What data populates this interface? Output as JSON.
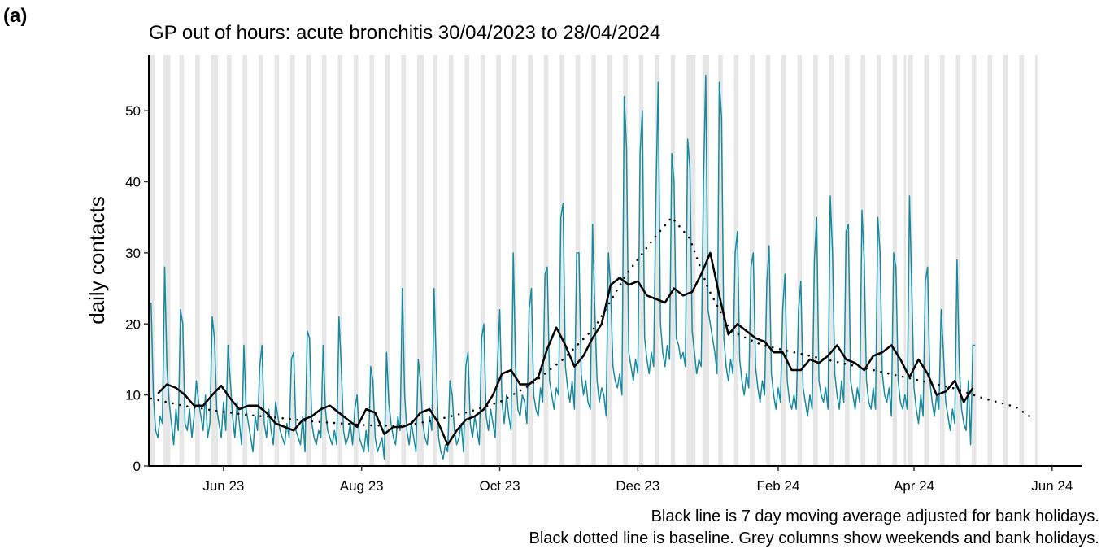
{
  "chart_data": {
    "type": "line",
    "panel_label": "(a)",
    "title": "GP out of hours: acute bronchitis 30/04/2023 to 28/04/2024",
    "ylabel": "daily contacts",
    "notes": [
      "Black line is 7 day moving average adjusted for bank holidays.",
      "Black dotted line is baseline. Grey columns show weekends and bank holidays."
    ],
    "xlim": [
      -1,
      411
    ],
    "ylim": [
      0,
      57.8
    ],
    "yticks": [
      0,
      10,
      20,
      30,
      40,
      50
    ],
    "xticks": [
      {
        "value": 32,
        "label": "Jun 23"
      },
      {
        "value": 93,
        "label": "Aug 23"
      },
      {
        "value": 154,
        "label": "Oct 23"
      },
      {
        "value": 215,
        "label": "Dec 23"
      },
      {
        "value": 277,
        "label": "Feb 24"
      },
      {
        "value": 337,
        "label": "Apr 24"
      },
      {
        "value": 398,
        "label": "Jun 24"
      }
    ],
    "shading_color": "#e6e6e6",
    "bank_holidays": [
      1,
      8,
      29,
      120,
      239,
      240,
      246,
      333,
      336
    ],
    "series": [
      {
        "style": "solid",
        "color": "#168b9f",
        "width": 1.5,
        "x": [
          0,
          1,
          2,
          3,
          4,
          5,
          6,
          7,
          8,
          9,
          10,
          11,
          12,
          13,
          14,
          15,
          16,
          17,
          18,
          19,
          20,
          21,
          22,
          23,
          24,
          25,
          26,
          27,
          28,
          29,
          30,
          31,
          32,
          33,
          34,
          35,
          36,
          37,
          38,
          39,
          40,
          41,
          42,
          43,
          44,
          45,
          46,
          47,
          48,
          49,
          50,
          51,
          52,
          53,
          54,
          55,
          56,
          57,
          58,
          59,
          60,
          61,
          62,
          63,
          64,
          65,
          66,
          67,
          68,
          69,
          70,
          71,
          72,
          73,
          74,
          75,
          76,
          77,
          78,
          79,
          80,
          81,
          82,
          83,
          84,
          85,
          86,
          87,
          88,
          89,
          90,
          91,
          92,
          93,
          94,
          95,
          96,
          97,
          98,
          99,
          100,
          101,
          102,
          103,
          104,
          105,
          106,
          107,
          108,
          109,
          110,
          111,
          112,
          113,
          114,
          115,
          116,
          117,
          118,
          119,
          120,
          121,
          122,
          123,
          124,
          125,
          126,
          127,
          128,
          129,
          130,
          131,
          132,
          133,
          134,
          135,
          136,
          137,
          138,
          139,
          140,
          141,
          142,
          143,
          144,
          145,
          146,
          147,
          148,
          149,
          150,
          151,
          152,
          153,
          154,
          155,
          156,
          157,
          158,
          159,
          160,
          161,
          162,
          163,
          164,
          165,
          166,
          167,
          168,
          169,
          170,
          171,
          172,
          173,
          174,
          175,
          176,
          177,
          178,
          179,
          180,
          181,
          182,
          183,
          184,
          185,
          186,
          187,
          188,
          189,
          190,
          191,
          192,
          193,
          194,
          195,
          196,
          197,
          198,
          199,
          200,
          201,
          202,
          203,
          204,
          205,
          206,
          207,
          208,
          209,
          210,
          211,
          212,
          213,
          214,
          215,
          216,
          217,
          218,
          219,
          220,
          221,
          222,
          223,
          224,
          225,
          226,
          227,
          228,
          229,
          230,
          231,
          232,
          233,
          234,
          235,
          236,
          237,
          238,
          239,
          240,
          241,
          242,
          243,
          244,
          245,
          246,
          247,
          248,
          249,
          250,
          251,
          252,
          253,
          254,
          255,
          256,
          257,
          258,
          259,
          260,
          261,
          262,
          263,
          264,
          265,
          266,
          267,
          268,
          269,
          270,
          271,
          272,
          273,
          274,
          275,
          276,
          277,
          278,
          279,
          280,
          281,
          282,
          283,
          284,
          285,
          286,
          287,
          288,
          289,
          290,
          291,
          292,
          293,
          294,
          295,
          296,
          297,
          298,
          299,
          300,
          301,
          302,
          303,
          304,
          305,
          306,
          307,
          308,
          309,
          310,
          311,
          312,
          313,
          314,
          315,
          316,
          317,
          318,
          319,
          320,
          321,
          322,
          323,
          324,
          325,
          326,
          327,
          328,
          329,
          330,
          331,
          332,
          333,
          334,
          335,
          336,
          337,
          338,
          339,
          340,
          341,
          342,
          343,
          344,
          345,
          346,
          347,
          348,
          349,
          350,
          351,
          352,
          353,
          354,
          355,
          356,
          357,
          358,
          359,
          360,
          361,
          362,
          363,
          364
        ],
        "values": [
          23,
          10,
          5,
          4,
          7,
          6,
          28,
          14,
          9,
          6,
          3,
          8,
          5,
          22,
          20,
          6,
          5,
          8,
          4,
          7,
          12,
          9,
          7,
          5,
          10,
          4,
          6,
          21,
          18,
          8,
          6,
          4,
          9,
          5,
          17,
          12,
          7,
          4,
          9,
          6,
          3,
          17,
          8,
          6,
          4,
          2,
          7,
          5,
          14,
          17,
          6,
          4,
          8,
          5,
          3,
          9,
          7,
          5,
          4,
          3,
          6,
          4,
          15,
          16,
          5,
          4,
          3,
          7,
          2,
          19,
          18,
          6,
          4,
          3,
          5,
          4,
          17,
          8,
          5,
          4,
          3,
          5,
          3,
          21,
          14,
          5,
          3,
          4,
          6,
          3,
          8,
          10,
          4,
          3,
          2,
          5,
          2,
          14,
          12,
          4,
          2,
          3,
          4,
          1,
          16,
          9,
          6,
          4,
          3,
          7,
          5,
          25,
          10,
          5,
          3,
          6,
          4,
          2,
          15,
          12,
          6,
          4,
          3,
          7,
          5,
          25,
          14,
          4,
          2,
          1,
          3,
          2,
          12,
          10,
          5,
          3,
          4,
          6,
          2,
          14,
          16,
          6,
          4,
          7,
          5,
          3,
          18,
          20,
          7,
          5,
          8,
          6,
          4,
          14,
          22,
          9,
          6,
          10,
          7,
          5,
          30,
          14,
          8,
          7,
          10,
          9,
          6,
          22,
          25,
          10,
          8,
          7,
          11,
          9,
          27,
          28,
          12,
          10,
          8,
          11,
          10,
          35,
          37,
          14,
          11,
          9,
          12,
          8,
          30,
          30,
          13,
          10,
          12,
          9,
          8,
          34,
          22,
          12,
          9,
          11,
          10,
          7,
          30,
          25,
          14,
          12,
          11,
          13,
          10,
          52,
          45,
          16,
          14,
          12,
          15,
          13,
          44,
          50,
          18,
          15,
          13,
          16,
          14,
          38,
          54,
          20,
          16,
          14,
          17,
          15,
          44,
          40,
          18,
          17,
          15,
          16,
          14,
          46,
          42,
          19,
          16,
          13,
          15,
          14,
          40,
          55,
          22,
          20,
          18,
          16,
          13,
          54,
          49,
          18,
          14,
          12,
          15,
          13,
          30,
          33,
          15,
          12,
          10,
          13,
          11,
          28,
          30,
          14,
          11,
          9,
          12,
          10,
          26,
          31,
          13,
          10,
          8,
          11,
          9,
          22,
          27,
          12,
          9,
          8,
          10,
          8,
          22,
          26,
          11,
          9,
          7,
          10,
          8,
          29,
          35,
          12,
          10,
          9,
          11,
          8,
          38,
          30,
          13,
          10,
          8,
          12,
          9,
          33,
          34,
          12,
          10,
          8,
          11,
          9,
          36,
          29,
          12,
          9,
          8,
          11,
          8,
          35,
          30,
          13,
          10,
          9,
          11,
          7,
          30,
          28,
          12,
          9,
          8,
          10,
          8,
          38,
          25,
          11,
          8,
          6,
          10,
          7,
          26,
          28,
          12,
          9,
          7,
          10,
          8,
          22,
          16,
          9,
          7,
          5,
          8,
          6,
          29,
          14,
          8,
          6,
          5,
          12,
          3,
          17,
          17
        ]
      },
      {
        "style": "solid",
        "color": "#000000",
        "width": 2.5,
        "x": [
          3,
          7,
          11,
          15,
          19,
          23,
          27,
          31,
          35,
          39,
          43,
          47,
          51,
          55,
          59,
          63,
          67,
          71,
          75,
          79,
          83,
          87,
          91,
          95,
          99,
          103,
          107,
          111,
          115,
          119,
          123,
          127,
          131,
          135,
          139,
          143,
          147,
          151,
          155,
          159,
          163,
          167,
          171,
          175,
          179,
          183,
          187,
          191,
          195,
          199,
          203,
          207,
          211,
          215,
          219,
          223,
          227,
          231,
          235,
          239,
          243,
          247,
          251,
          255,
          259,
          263,
          267,
          271,
          275,
          279,
          283,
          287,
          291,
          295,
          299,
          303,
          307,
          311,
          315,
          319,
          323,
          327,
          331,
          335,
          339,
          343,
          347,
          351,
          355,
          359,
          363
        ],
        "values": [
          10.2,
          11.5,
          11,
          10,
          8.5,
          8.5,
          10,
          11.3,
          9.5,
          8,
          8.5,
          8.5,
          7.5,
          6,
          5.5,
          5,
          6.5,
          7,
          8,
          8.5,
          7.5,
          6.5,
          5.5,
          8,
          7.5,
          4.5,
          5.5,
          5.5,
          6,
          7.5,
          8,
          6,
          3,
          5,
          6.5,
          7,
          8,
          10,
          13,
          13.5,
          11.5,
          11.5,
          12.5,
          16.5,
          19.5,
          17,
          14,
          15.5,
          18,
          20,
          25.5,
          26.5,
          25.5,
          26,
          24,
          23.5,
          23,
          25,
          24,
          24.5,
          27,
          30,
          24,
          18.5,
          20,
          19,
          18,
          17.5,
          16,
          16,
          13.5,
          13.5,
          15,
          14.5,
          15.5,
          17,
          15,
          14.5,
          13.5,
          15.5,
          16,
          17,
          15,
          12.5,
          15,
          13,
          10,
          10.5,
          12,
          9,
          11
        ]
      },
      {
        "style": "dotted",
        "color": "#000000",
        "width": 2.5,
        "x": [
          0,
          14,
          28,
          42,
          56,
          70,
          84,
          98,
          112,
          126,
          140,
          154,
          168,
          182,
          196,
          210,
          222,
          230,
          238,
          246,
          256,
          270,
          284,
          298,
          312,
          326,
          340,
          354,
          368,
          382,
          388
        ],
        "values": [
          9.5,
          8.5,
          7.8,
          7.2,
          6.8,
          6.3,
          6.0,
          5.7,
          5.7,
          6.5,
          7.6,
          9.0,
          11.5,
          15,
          19.5,
          27,
          32,
          35,
          32,
          25,
          19,
          17,
          16,
          15,
          14,
          13,
          12,
          11,
          9.5,
          8.3,
          7.0
        ]
      }
    ]
  }
}
